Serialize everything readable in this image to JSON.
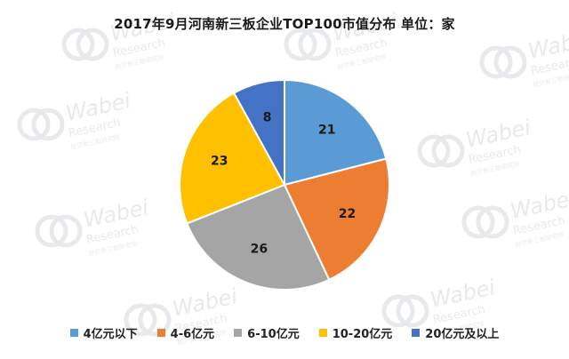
{
  "chart_data": {
    "type": "pie",
    "title": "2017年9月河南新三板企业TOP100市值分布 单位：家",
    "categories": [
      "4亿元以下",
      "4-6亿元",
      "6-10亿元",
      "10-20亿元",
      "20亿元及以上"
    ],
    "values": [
      21,
      22,
      26,
      23,
      8
    ],
    "colors": [
      "#5b9bd5",
      "#ed7d31",
      "#a5a5a5",
      "#ffc000",
      "#4472c4"
    ],
    "start_angle_deg": 0,
    "direction": "clockwise",
    "legend_position": "bottom"
  },
  "watermark": {
    "lines": [
      "Wabei",
      "Research",
      "挖贝新三板研究院"
    ],
    "color": "#d4d8de"
  }
}
